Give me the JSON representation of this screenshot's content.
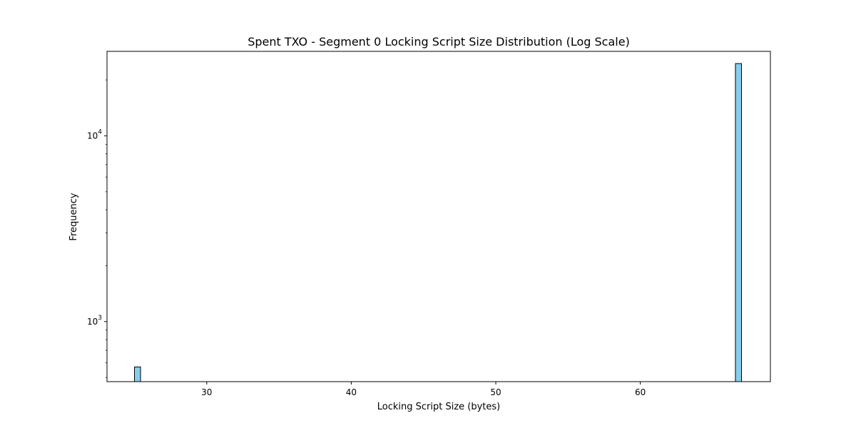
{
  "chart_data": {
    "type": "bar",
    "title": "Spent TXO - Segment 0 Locking Script Size Distribution (Log Scale)",
    "xlabel": "Locking Script Size (bytes)",
    "ylabel": "Frequency",
    "yscale": "log",
    "xlim": [
      23.1,
      69.0
    ],
    "ylim": [
      475,
      28500
    ],
    "x_ticks": [
      30,
      40,
      50,
      60
    ],
    "x_tick_labels": [
      "30",
      "40",
      "50",
      "60"
    ],
    "y_major_ticks": [
      1000,
      10000
    ],
    "y_major_tick_labels": [
      {
        "base": "10",
        "exp": "3"
      },
      {
        "base": "10",
        "exp": "4"
      }
    ],
    "bars": [
      {
        "x0": 25.0,
        "x1": 25.42,
        "value": 570
      },
      {
        "x0": 66.58,
        "x1": 67.0,
        "value": 24500
      }
    ],
    "bar_color": "#87ceeb",
    "edge_color": "#000000",
    "grid": false
  }
}
